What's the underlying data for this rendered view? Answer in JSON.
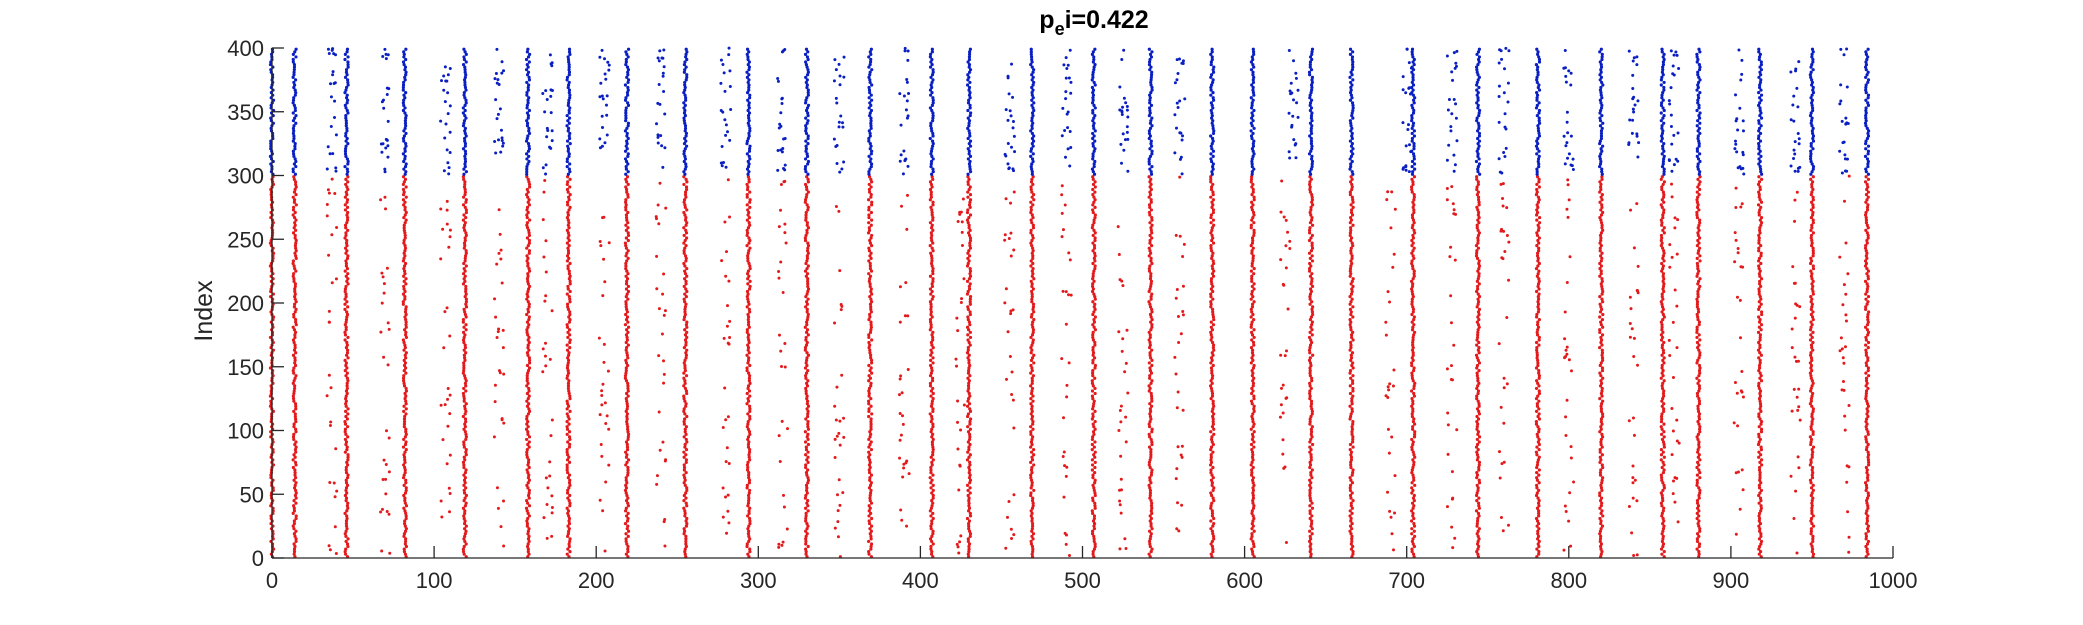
{
  "chart_data": {
    "type": "scatter",
    "title_base": "p",
    "title_sub": "e",
    "title_rest": "i=0.422",
    "xlabel": "",
    "ylabel": "Index",
    "xlim": [
      0,
      1000
    ],
    "ylim": [
      0,
      400
    ],
    "xticks": [
      "0",
      "100",
      "200",
      "300",
      "400",
      "500",
      "600",
      "700",
      "800",
      "900",
      "1000"
    ],
    "yticks": [
      "0",
      "50",
      "100",
      "150",
      "200",
      "250",
      "300",
      "350",
      "400"
    ],
    "grid": false,
    "series": [
      {
        "color": "#e31a1c",
        "index_range": [
          1,
          300
        ]
      },
      {
        "color": "#0a1fc2",
        "index_range": [
          301,
          400
        ]
      }
    ],
    "burst_times": [
      0,
      14,
      46,
      82,
      119,
      158,
      183,
      219,
      255,
      294,
      330,
      369,
      407,
      430,
      469,
      507,
      542,
      580,
      605,
      641,
      666,
      704,
      744,
      781,
      820,
      858,
      880,
      918,
      950,
      984
    ],
    "scattered_columns_red": [
      37,
      70,
      107,
      140,
      170,
      205,
      240,
      280,
      315,
      350,
      390,
      425,
      455,
      490,
      525,
      560,
      625,
      690,
      728,
      760,
      800,
      840,
      865,
      905,
      940,
      970
    ],
    "scattered_columns_blue": [
      37,
      70,
      107,
      140,
      170,
      205,
      240,
      280,
      315,
      350,
      390,
      455,
      490,
      525,
      560,
      630,
      700,
      728,
      760,
      800,
      840,
      865,
      905,
      940,
      970
    ]
  }
}
